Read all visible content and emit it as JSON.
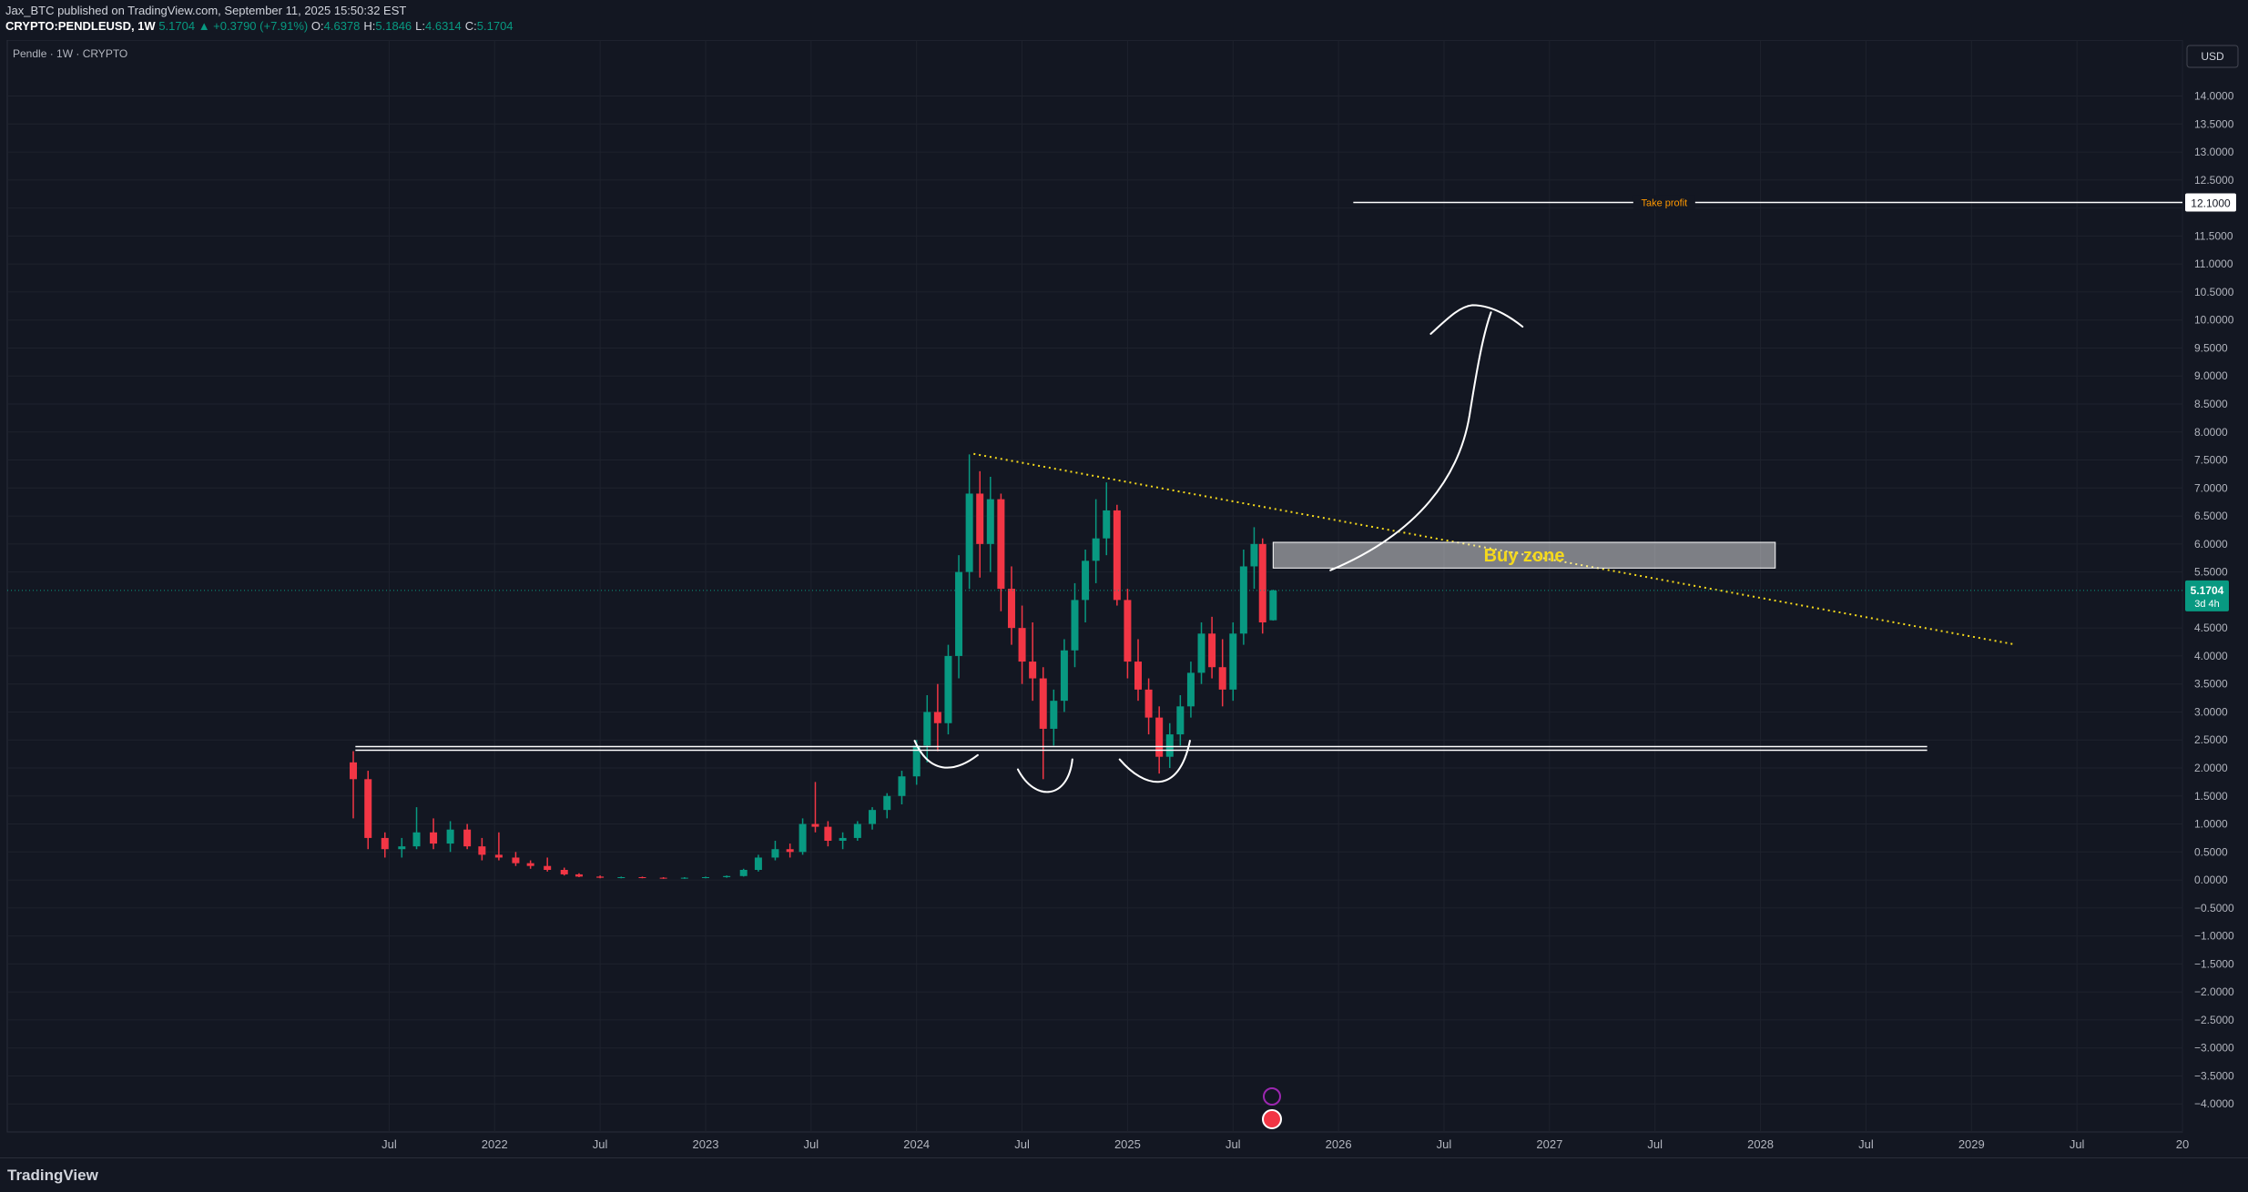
{
  "ui": {
    "publisher": "Jax_BTC published on TradingView.com, September 11, 2025 15:50:32 EST",
    "symbol": "CRYPTO:PENDLEUSD, 1W",
    "last": "5.1704",
    "change": "▲ +0.3790 (+7.91%)",
    "ohlc": [
      {
        "key": "O:",
        "value": "4.6378"
      },
      {
        "key": "H:",
        "value": "5.1846"
      },
      {
        "key": "L:",
        "value": "4.6314"
      },
      {
        "key": "C:",
        "value": "5.1704"
      }
    ],
    "pane_label": "Pendle · 1W · CRYPTO",
    "currency": "USD",
    "brand": "TradingView"
  },
  "chart_data": {
    "type": "candlestick",
    "up_color": "#089981",
    "down_color": "#f23645",
    "grid": true,
    "x": [
      2021.33,
      2021.4,
      2021.48,
      2021.56,
      2021.63,
      2021.71,
      2021.79,
      2021.87,
      2021.94,
      2022.02,
      2022.1,
      2022.17,
      2022.25,
      2022.33,
      2022.4,
      2022.5,
      2022.6,
      2022.7,
      2022.8,
      2022.9,
      2023.0,
      2023.1,
      2023.18,
      2023.25,
      2023.33,
      2023.4,
      2023.46,
      2023.52,
      2023.58,
      2023.65,
      2023.72,
      2023.79,
      2023.86,
      2023.93,
      2024.0,
      2024.05,
      2024.1,
      2024.15,
      2024.2,
      2024.25,
      2024.3,
      2024.35,
      2024.4,
      2024.45,
      2024.5,
      2024.55,
      2024.6,
      2024.65,
      2024.7,
      2024.75,
      2024.8,
      2024.85,
      2024.9,
      2024.95,
      2025.0,
      2025.05,
      2025.1,
      2025.15,
      2025.2,
      2025.25,
      2025.3,
      2025.35,
      2025.4,
      2025.45,
      2025.5,
      2025.55,
      2025.6,
      2025.64,
      2025.69
    ],
    "open": [
      2.1,
      1.8,
      0.75,
      0.55,
      0.6,
      0.85,
      0.65,
      0.9,
      0.6,
      0.45,
      0.4,
      0.3,
      0.25,
      0.18,
      0.1,
      0.06,
      0.04,
      0.05,
      0.04,
      0.03,
      0.04,
      0.05,
      0.07,
      0.18,
      0.4,
      0.55,
      0.5,
      1.0,
      0.95,
      0.7,
      0.75,
      1.0,
      1.25,
      1.5,
      1.85,
      2.4,
      3.0,
      2.8,
      4.0,
      5.5,
      6.9,
      6.0,
      6.8,
      5.2,
      4.5,
      3.9,
      3.6,
      2.7,
      3.2,
      4.1,
      5.0,
      5.7,
      6.1,
      6.6,
      5.0,
      3.9,
      3.4,
      2.9,
      2.2,
      2.6,
      3.1,
      3.7,
      4.4,
      3.8,
      3.4,
      4.4,
      5.6,
      6.0,
      4.6378
    ],
    "high": [
      2.3,
      1.95,
      0.85,
      0.75,
      1.3,
      1.1,
      1.05,
      1.0,
      0.75,
      0.85,
      0.5,
      0.35,
      0.4,
      0.22,
      0.12,
      0.08,
      0.06,
      0.06,
      0.05,
      0.05,
      0.06,
      0.08,
      0.2,
      0.45,
      0.7,
      0.65,
      1.1,
      1.75,
      1.05,
      0.85,
      1.05,
      1.3,
      1.55,
      1.95,
      2.5,
      3.3,
      3.5,
      4.2,
      5.8,
      7.6,
      7.3,
      7.2,
      6.9,
      5.6,
      4.9,
      4.6,
      3.8,
      3.4,
      4.3,
      5.3,
      5.9,
      6.8,
      7.1,
      6.7,
      5.2,
      4.3,
      3.6,
      3.1,
      2.8,
      3.3,
      3.9,
      4.6,
      4.7,
      4.3,
      4.6,
      5.9,
      6.3,
      6.1,
      5.1846
    ],
    "low": [
      1.1,
      0.55,
      0.4,
      0.4,
      0.55,
      0.55,
      0.5,
      0.55,
      0.35,
      0.35,
      0.25,
      0.2,
      0.15,
      0.08,
      0.05,
      0.03,
      0.03,
      0.03,
      0.02,
      0.02,
      0.03,
      0.04,
      0.06,
      0.15,
      0.35,
      0.4,
      0.45,
      0.85,
      0.6,
      0.55,
      0.7,
      0.9,
      1.1,
      1.35,
      1.7,
      2.1,
      2.3,
      2.6,
      3.6,
      5.2,
      5.4,
      5.5,
      4.8,
      4.2,
      3.5,
      3.2,
      1.8,
      2.4,
      3.0,
      3.8,
      4.6,
      5.3,
      5.8,
      4.9,
      3.6,
      3.2,
      2.6,
      1.9,
      2.0,
      2.4,
      2.9,
      3.5,
      3.6,
      3.1,
      3.2,
      4.2,
      5.2,
      4.4,
      4.6314
    ],
    "close": [
      1.8,
      0.75,
      0.55,
      0.6,
      0.85,
      0.65,
      0.9,
      0.6,
      0.45,
      0.4,
      0.3,
      0.25,
      0.18,
      0.1,
      0.06,
      0.04,
      0.05,
      0.04,
      0.03,
      0.04,
      0.05,
      0.07,
      0.18,
      0.4,
      0.55,
      0.5,
      1.0,
      0.95,
      0.7,
      0.75,
      1.0,
      1.25,
      1.5,
      1.85,
      2.4,
      3.0,
      2.8,
      4.0,
      5.5,
      6.9,
      6.0,
      6.8,
      5.2,
      4.5,
      3.9,
      3.6,
      2.7,
      3.2,
      4.1,
      5.0,
      5.7,
      6.1,
      6.6,
      5.0,
      3.9,
      3.4,
      2.9,
      2.2,
      2.6,
      3.1,
      3.7,
      4.4,
      3.8,
      3.4,
      4.4,
      5.6,
      6.0,
      4.6,
      5.1704
    ],
    "xlim": [
      2019.69,
      2030.0
    ],
    "xticks": [
      {
        "value": 2021.5,
        "label": "Jul"
      },
      2022,
      {
        "value": 2022.5,
        "label": "Jul"
      },
      2023,
      {
        "value": 2023.5,
        "label": "Jul"
      },
      2024,
      {
        "value": 2024.5,
        "label": "Jul"
      },
      2025,
      {
        "value": 2025.5,
        "label": "Jul"
      },
      2026,
      {
        "value": 2026.5,
        "label": "Jul"
      },
      2027,
      {
        "value": 2027.5,
        "label": "Jul"
      },
      2028,
      {
        "value": 2028.5,
        "label": "Jul"
      },
      2029,
      {
        "value": 2029.5,
        "label": "Jul"
      },
      {
        "value": 2030,
        "label": "20"
      }
    ],
    "ylim": [
      -4.5,
      15
    ],
    "yticks": [
      {
        "value": 14,
        "label": "14.0000"
      },
      {
        "value": 13.5,
        "label": "13.5000"
      },
      {
        "value": 13,
        "label": "13.0000"
      },
      {
        "value": 12.5,
        "label": "12.5000"
      },
      {
        "value": 12,
        "label": "12.0000"
      },
      {
        "value": 11.5,
        "label": "11.5000"
      },
      {
        "value": 11,
        "label": "11.0000"
      },
      {
        "value": 10.5,
        "label": "10.5000"
      },
      {
        "value": 10,
        "label": "10.0000"
      },
      {
        "value": 9.5,
        "label": "9.5000"
      },
      {
        "value": 9,
        "label": "9.0000"
      },
      {
        "value": 8.5,
        "label": "8.5000"
      },
      {
        "value": 8,
        "label": "8.0000"
      },
      {
        "value": 7.5,
        "label": "7.5000"
      },
      {
        "value": 7,
        "label": "7.0000"
      },
      {
        "value": 6.5,
        "label": "6.5000"
      },
      {
        "value": 6,
        "label": "6.0000"
      },
      {
        "value": 5.5,
        "label": "5.5000"
      },
      {
        "value": 4.5,
        "label": "4.5000"
      },
      {
        "value": 4,
        "label": "4.0000"
      },
      {
        "value": 3.5,
        "label": "3.5000"
      },
      {
        "value": 3,
        "label": "3.0000"
      },
      {
        "value": 2.5,
        "label": "2.5000"
      },
      {
        "value": 2,
        "label": "2.0000"
      },
      {
        "value": 1.5,
        "label": "1.5000"
      },
      {
        "value": 1,
        "label": "1.0000"
      },
      {
        "value": 0.5,
        "label": "0.5000"
      },
      {
        "value": 0,
        "label": "0.0000"
      },
      {
        "value": -0.5,
        "label": "−0.5000"
      },
      {
        "value": -1,
        "label": "−1.0000"
      },
      {
        "value": -1.5,
        "label": "−1.5000"
      },
      {
        "value": -2,
        "label": "−2.0000"
      },
      {
        "value": -2.5,
        "label": "−2.5000"
      },
      {
        "value": -3,
        "label": "−3.0000"
      },
      {
        "value": -3.5,
        "label": "−3.5000"
      },
      {
        "value": -4,
        "label": "−4.0000"
      }
    ],
    "support_line": {
      "value": 2.35,
      "x": [
        2021.34,
        2028.79
      ]
    },
    "trend_line": {
      "x": [
        2024.27,
        2029.2
      ],
      "y": [
        7.61,
        4.21
      ],
      "color": "#f5d91c"
    },
    "buy_zone": {
      "label": "Buy zone",
      "x": [
        2025.69,
        2028.07
      ],
      "y": [
        5.57,
        6.03
      ]
    },
    "take_profit": {
      "label": "Take profit",
      "value": 12.1,
      "value_label": "12.1000",
      "x_start": 2026.07,
      "color": "#ff9800"
    },
    "last_price": {
      "value": 5.1704,
      "label": "5.1704",
      "countdown": "3d 4h"
    }
  }
}
